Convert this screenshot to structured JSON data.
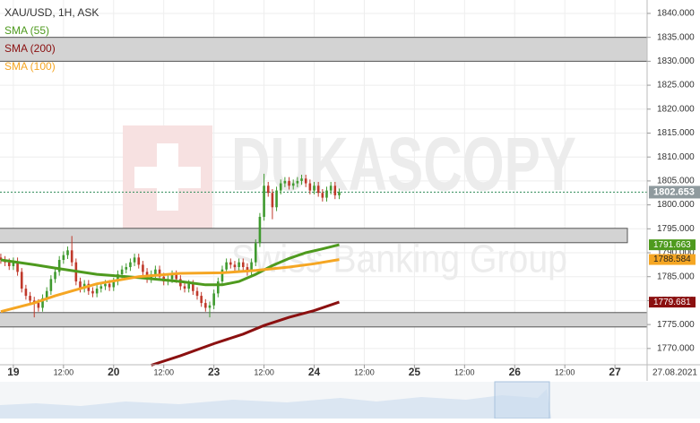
{
  "chart_data": {
    "type": "candlestick",
    "title": "XAU/USD, 1H, ASK",
    "watermark": [
      "DUKASCOPY",
      "Swiss Banking Group"
    ],
    "date_label": "27.08.2021",
    "up_color": "#3f9a2f",
    "down_color": "#c0392b",
    "price_line_color": "#2e8b57",
    "grid": true,
    "xlim": [
      -3.2,
      151.7
    ],
    "ylim": [
      1766.6,
      1842.8
    ],
    "xticks": [
      {
        "value": 0,
        "label": "19"
      },
      {
        "value": 12,
        "label": "12:00"
      },
      {
        "value": 24,
        "label": "20"
      },
      {
        "value": 36,
        "label": "12:00"
      },
      {
        "value": 48,
        "label": "23"
      },
      {
        "value": 60,
        "label": "12:00"
      },
      {
        "value": 72,
        "label": "24"
      },
      {
        "value": 84,
        "label": "12:00"
      },
      {
        "value": 96,
        "label": "25"
      },
      {
        "value": 108,
        "label": "12:00"
      },
      {
        "value": 120,
        "label": "26"
      },
      {
        "value": 132,
        "label": "12:00"
      },
      {
        "value": 144,
        "label": "27"
      }
    ],
    "yticks": [
      {
        "value": 1770,
        "label": "1770.000"
      },
      {
        "value": 1775,
        "label": "1775.000"
      },
      {
        "value": 1780,
        "label": "1780.000"
      },
      {
        "value": 1785,
        "label": "1785.000"
      },
      {
        "value": 1790,
        "label": "1790.000"
      },
      {
        "value": 1795,
        "label": "1795.000"
      },
      {
        "value": 1800,
        "label": "1800.000"
      },
      {
        "value": 1805,
        "label": "1805.000"
      },
      {
        "value": 1810,
        "label": "1810.000"
      },
      {
        "value": 1815,
        "label": "1815.000"
      },
      {
        "value": 1820,
        "label": "1820.000"
      },
      {
        "value": 1825,
        "label": "1825.000"
      },
      {
        "value": 1830,
        "label": "1830.000"
      },
      {
        "value": 1835,
        "label": "1835.000"
      },
      {
        "value": 1840,
        "label": "1840.000"
      }
    ],
    "zones": [
      {
        "from": 1830,
        "to": 1835
      },
      {
        "from": 1792.1,
        "to": 1795.1
      },
      {
        "from": 1774.5,
        "to": 1777.5
      }
    ],
    "candles": {
      "x": [
        -3,
        -2,
        -1,
        0,
        1,
        2,
        3,
        4,
        5,
        6,
        7,
        8,
        9,
        10,
        11,
        12,
        13,
        14,
        15,
        16,
        17,
        18,
        19,
        20,
        21,
        22,
        23,
        24,
        25,
        26,
        27,
        28,
        29,
        30,
        31,
        32,
        33,
        34,
        35,
        36,
        37,
        38,
        39,
        40,
        41,
        42,
        43,
        44,
        45,
        46,
        47,
        48,
        49,
        50,
        51,
        52,
        53,
        54,
        55,
        56,
        57,
        58,
        59,
        60,
        61,
        62,
        63,
        64,
        65,
        66,
        67,
        68,
        69,
        70,
        71,
        72,
        73,
        74,
        75,
        76,
        77,
        78
      ],
      "open": [
        1789.0,
        1788.5,
        1788.0,
        1787.2,
        1788.2,
        1786.0,
        1782.5,
        1781.0,
        1780.0,
        1779.5,
        1778.5,
        1780.5,
        1782.0,
        1784.5,
        1786.0,
        1788.5,
        1789.5,
        1790.5,
        1788.0,
        1784.0,
        1782.5,
        1783.5,
        1782.0,
        1781.5,
        1782.5,
        1783.0,
        1783.5,
        1782.8,
        1784.0,
        1785.5,
        1786.5,
        1787.0,
        1788.0,
        1789.0,
        1787.5,
        1786.0,
        1784.5,
        1785.5,
        1786.5,
        1785.0,
        1784.0,
        1784.5,
        1785.5,
        1784.5,
        1783.0,
        1782.5,
        1783.5,
        1782.0,
        1781.0,
        1779.5,
        1778.5,
        1779.0,
        1781.5,
        1784.0,
        1786.5,
        1788.0,
        1787.5,
        1787.0,
        1788.0,
        1787.0,
        1786.0,
        1788.0,
        1792.0,
        1797.5,
        1804.0,
        1802.5,
        1799.5,
        1803.0,
        1804.5,
        1805.0,
        1804.0,
        1804.5,
        1805.0,
        1805.5,
        1804.5,
        1803.0,
        1804.0,
        1802.5,
        1801.5,
        1803.0,
        1804.0,
        1802.0
      ],
      "high": [
        1789.8,
        1789.3,
        1788.8,
        1789.0,
        1789.0,
        1786.8,
        1783.3,
        1781.8,
        1780.8,
        1780.3,
        1781.3,
        1782.8,
        1785.3,
        1786.8,
        1789.3,
        1790.3,
        1791.3,
        1793.5,
        1788.8,
        1784.8,
        1784.3,
        1784.3,
        1782.8,
        1783.3,
        1783.8,
        1784.3,
        1784.3,
        1784.8,
        1786.3,
        1787.3,
        1787.8,
        1788.8,
        1789.8,
        1789.8,
        1788.3,
        1786.8,
        1786.3,
        1787.3,
        1787.3,
        1785.8,
        1785.3,
        1786.3,
        1786.3,
        1785.3,
        1783.8,
        1784.3,
        1784.3,
        1782.8,
        1781.8,
        1780.3,
        1779.8,
        1782.3,
        1784.8,
        1787.3,
        1788.8,
        1788.8,
        1788.3,
        1788.8,
        1788.8,
        1787.8,
        1788.8,
        1792.8,
        1798.3,
        1806.5,
        1804.8,
        1803.3,
        1803.8,
        1805.3,
        1805.8,
        1805.8,
        1805.3,
        1805.8,
        1806.3,
        1806.3,
        1805.3,
        1804.8,
        1804.8,
        1803.3,
        1803.8,
        1804.8,
        1804.8,
        1803.4
      ],
      "low": [
        1787.7,
        1787.2,
        1786.4,
        1786.4,
        1785.2,
        1781.7,
        1780.2,
        1779.2,
        1776.5,
        1777.7,
        1777.7,
        1779.7,
        1781.2,
        1783.7,
        1785.2,
        1787.7,
        1788.7,
        1787.2,
        1783.2,
        1781.7,
        1781.7,
        1781.2,
        1780.7,
        1780.7,
        1781.7,
        1782.2,
        1782.0,
        1782.0,
        1783.2,
        1784.7,
        1785.7,
        1786.2,
        1787.2,
        1786.7,
        1785.2,
        1783.7,
        1783.7,
        1784.7,
        1784.2,
        1783.2,
        1783.2,
        1783.7,
        1783.7,
        1782.2,
        1781.7,
        1781.7,
        1781.2,
        1780.2,
        1778.7,
        1777.7,
        1776.5,
        1778.2,
        1780.7,
        1783.2,
        1785.7,
        1786.7,
        1786.2,
        1786.2,
        1786.2,
        1785.2,
        1785.2,
        1787.2,
        1791.2,
        1796.7,
        1801.7,
        1797.0,
        1798.7,
        1802.2,
        1803.7,
        1803.2,
        1803.2,
        1803.7,
        1804.2,
        1803.7,
        1802.2,
        1802.2,
        1801.7,
        1800.7,
        1800.7,
        1802.2,
        1801.2,
        1801.2
      ],
      "close": [
        1788.5,
        1788.0,
        1787.2,
        1788.2,
        1786.0,
        1782.5,
        1781.0,
        1780.0,
        1779.5,
        1778.5,
        1780.5,
        1782.0,
        1784.5,
        1786.0,
        1788.5,
        1789.5,
        1790.5,
        1788.0,
        1784.0,
        1782.5,
        1783.5,
        1782.0,
        1781.5,
        1782.5,
        1783.0,
        1783.5,
        1782.8,
        1784.0,
        1785.5,
        1786.5,
        1787.0,
        1788.0,
        1789.0,
        1787.5,
        1786.0,
        1784.5,
        1785.5,
        1786.5,
        1785.0,
        1784.0,
        1784.5,
        1785.5,
        1784.5,
        1783.0,
        1782.5,
        1783.5,
        1782.0,
        1781.0,
        1779.5,
        1778.5,
        1779.0,
        1781.5,
        1784.0,
        1786.5,
        1788.0,
        1787.5,
        1787.0,
        1788.0,
        1787.0,
        1786.0,
        1788.0,
        1792.0,
        1797.5,
        1804.0,
        1802.5,
        1799.5,
        1803.0,
        1804.5,
        1805.0,
        1804.0,
        1804.5,
        1805.0,
        1805.5,
        1804.5,
        1803.0,
        1804.0,
        1802.5,
        1801.5,
        1803.0,
        1804.0,
        1802.0,
        1802.653
      ]
    },
    "series": [
      {
        "name": "SMA (55)",
        "color": "#4e9a1e",
        "text_color": "#ffffff",
        "x": [
          -3,
          5,
          10,
          20,
          30,
          40,
          46,
          50,
          54,
          58,
          62,
          66,
          70,
          74,
          78
        ],
        "values": [
          1788.5,
          1787.5,
          1786.8,
          1785.5,
          1784.8,
          1784.0,
          1783.3,
          1783.3,
          1784.0,
          1785.5,
          1787.3,
          1788.8,
          1790.0,
          1790.8,
          1791.663
        ]
      },
      {
        "name": "SMA (200)",
        "color": "#8b1010",
        "text_color": "#ffffff",
        "x": [
          33,
          40,
          48,
          55,
          60,
          66,
          72,
          78
        ],
        "values": [
          1766.5,
          1768.5,
          1771.0,
          1773.0,
          1774.8,
          1776.5,
          1777.9,
          1779.681
        ]
      },
      {
        "name": "SMA (100)",
        "color": "#f5a623",
        "text_color": "#222222",
        "x": [
          -3,
          5,
          10,
          20,
          30,
          40,
          50,
          58,
          66,
          72,
          78
        ],
        "values": [
          1777.7,
          1779.5,
          1781.0,
          1783.5,
          1785.0,
          1785.7,
          1785.8,
          1786.3,
          1787.0,
          1787.7,
          1788.584
        ]
      }
    ]
  }
}
